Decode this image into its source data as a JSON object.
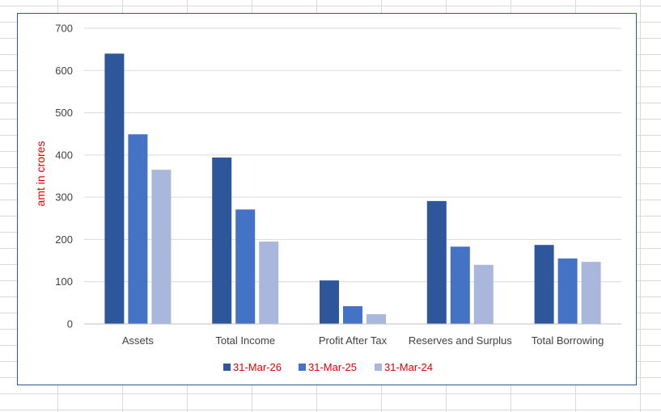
{
  "chart_data": {
    "type": "bar",
    "title": "",
    "xlabel": "",
    "ylabel": "amt in crores",
    "ylim": [
      0,
      700
    ],
    "yticks": [
      0,
      100,
      200,
      300,
      400,
      500,
      600,
      700
    ],
    "grid": true,
    "legend_position": "bottom",
    "categories": [
      "Assets",
      "Total Income",
      "Profit After Tax",
      "Reserves and Surplus",
      "Total Borrowing"
    ],
    "series": [
      {
        "name": "31-Mar-26",
        "color": "#2e569b",
        "values": [
          640,
          394,
          103,
          291,
          187
        ]
      },
      {
        "name": "31-Mar-25",
        "color": "#4472c4",
        "values": [
          449,
          271,
          42,
          183,
          155
        ]
      },
      {
        "name": "31-Mar-24",
        "color": "#a9b7dc",
        "values": [
          365,
          195,
          23,
          140,
          147
        ]
      }
    ]
  }
}
